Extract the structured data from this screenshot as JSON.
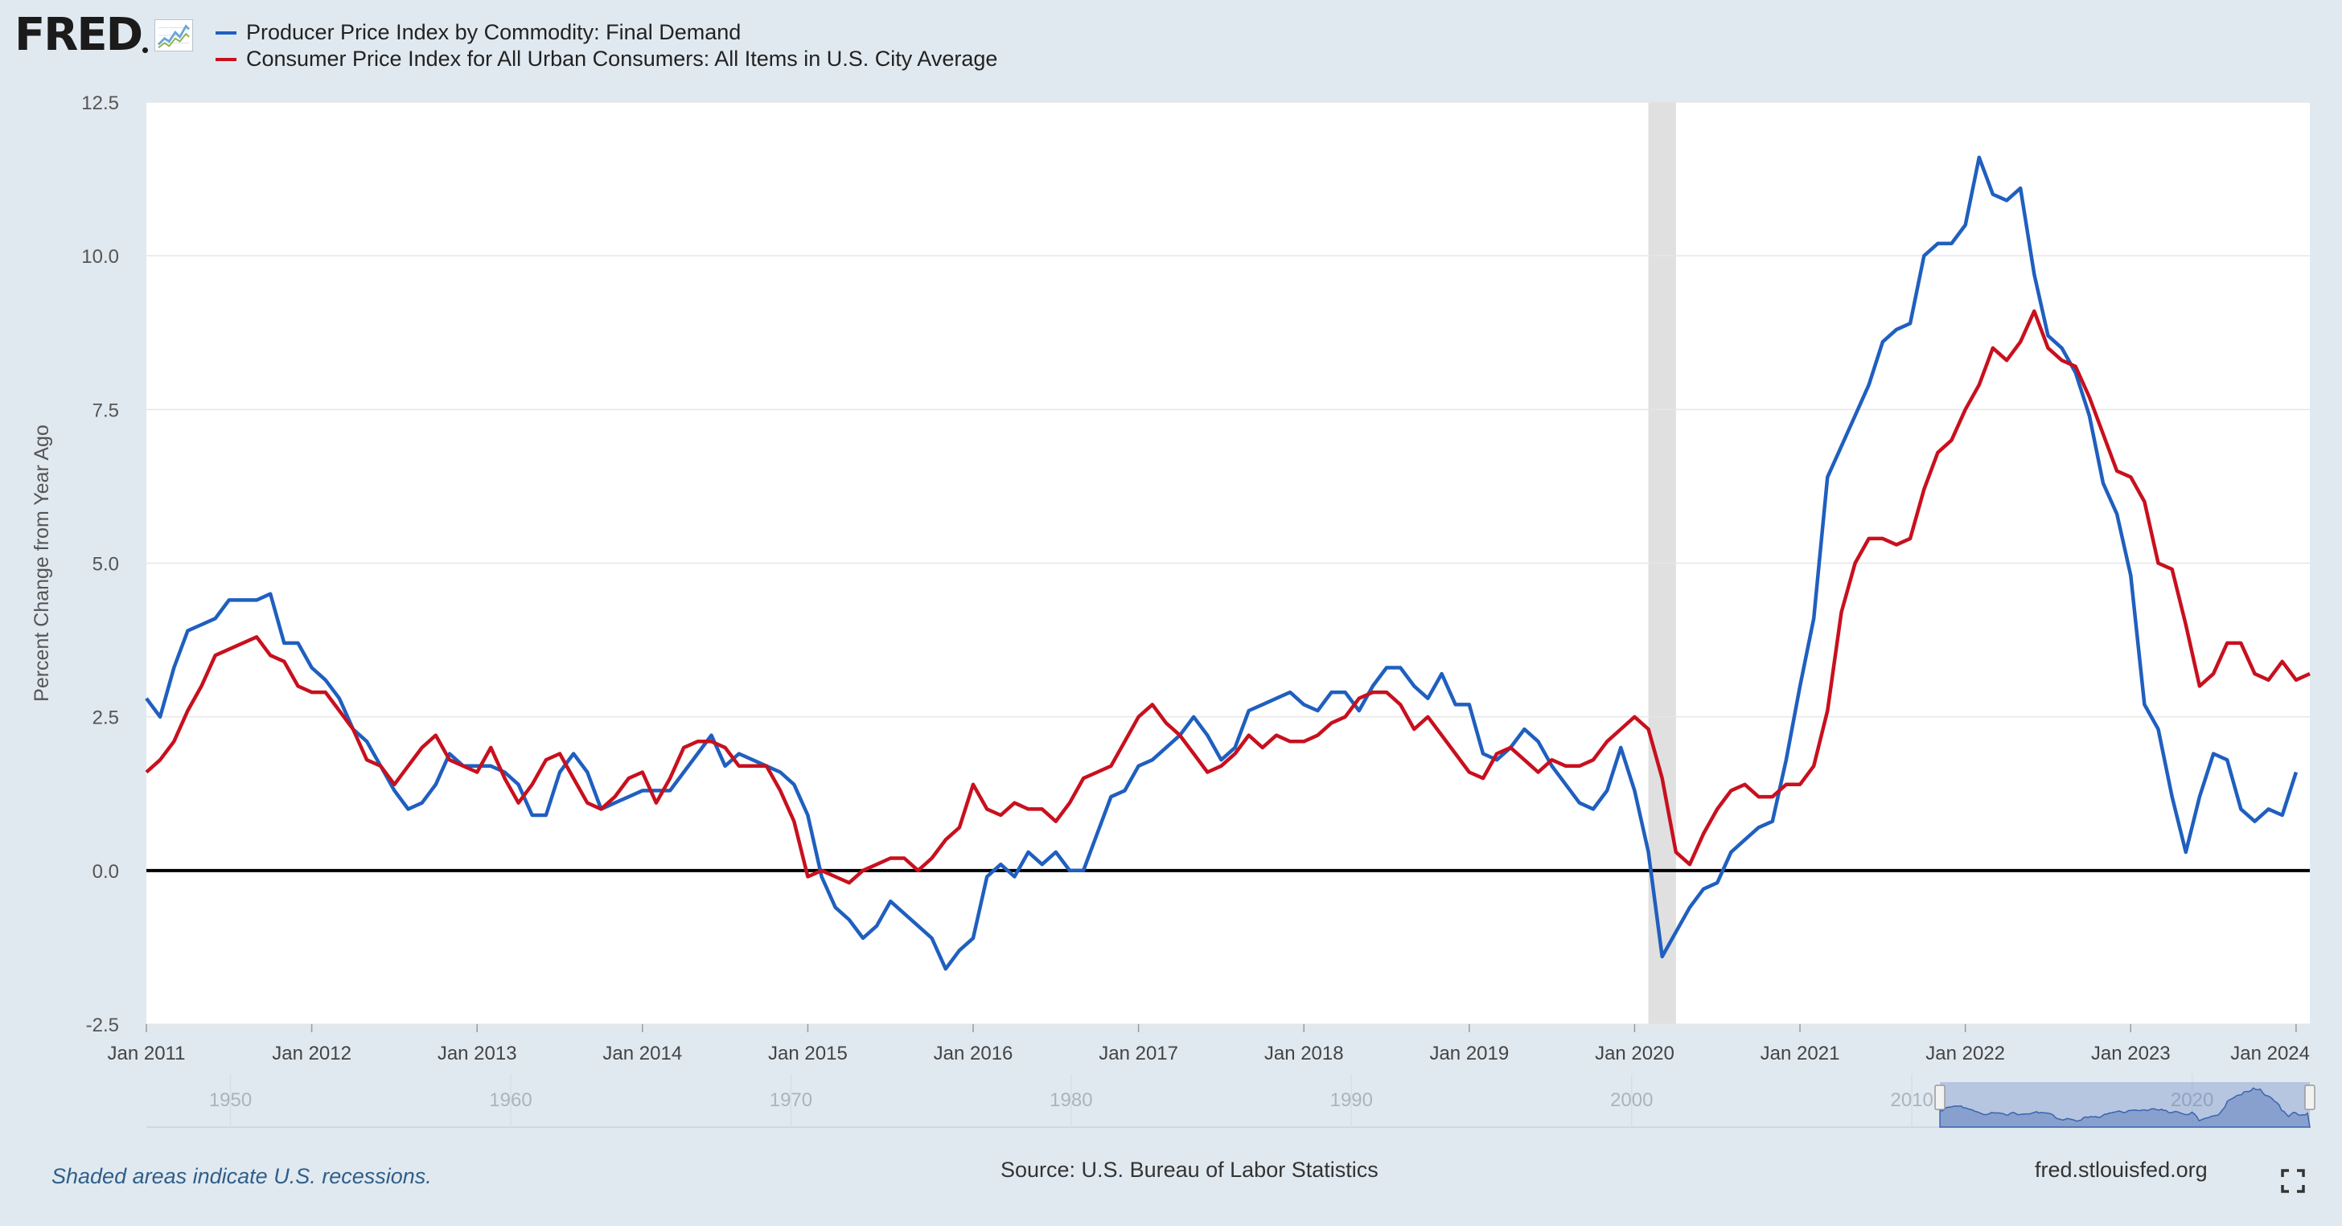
{
  "brand": {
    "logo_text": "FRED",
    "site": "fred.stlouisfed.org"
  },
  "colors": {
    "ppi": "#1f5fbf",
    "cpi": "#c8101e",
    "background": "#e1e9f0",
    "plot": "#ffffff",
    "recession": "#e0e0e0"
  },
  "footer": {
    "recession_note": "Shaded areas indicate U.S. recessions.",
    "source": "Source: U.S. Bureau of Labor Statistics"
  },
  "icons": {
    "fullscreen": "expand-icon",
    "logo": "line-chart-icon"
  },
  "chart_data": {
    "type": "line",
    "ylabel": "Percent Change from Year Ago",
    "ylim": [
      -2.5,
      12.5
    ],
    "yticks": [
      -2.5,
      0.0,
      2.5,
      5.0,
      7.5,
      10.0,
      12.5
    ],
    "ytick_labels": [
      "-2.5",
      "0.0",
      "2.5",
      "5.0",
      "7.5",
      "10.0",
      "12.5"
    ],
    "xlim": [
      "2011-01",
      "2024-02"
    ],
    "xticks": [
      "2011-01",
      "2012-01",
      "2013-01",
      "2014-01",
      "2015-01",
      "2016-01",
      "2017-01",
      "2018-01",
      "2019-01",
      "2020-01",
      "2021-01",
      "2022-01",
      "2023-01",
      "2024-01"
    ],
    "xtick_labels": [
      "Jan 2011",
      "Jan 2012",
      "Jan 2013",
      "Jan 2014",
      "Jan 2015",
      "Jan 2016",
      "Jan 2017",
      "Jan 2018",
      "Jan 2019",
      "Jan 2020",
      "Jan 2021",
      "Jan 2022",
      "Jan 2023",
      "Jan 2024"
    ],
    "zero_line": true,
    "grid": "horizontal",
    "recessions": [
      {
        "start": "2020-02",
        "end": "2020-04"
      }
    ],
    "navigator": {
      "labels": [
        "1950",
        "1960",
        "1970",
        "1980",
        "1990",
        "2000",
        "2010",
        "2020"
      ],
      "range": [
        1947,
        2024.2
      ],
      "selected": [
        2011.0,
        2024.2
      ]
    },
    "series": [
      {
        "name": "Producer Price Index by Commodity: Final Demand",
        "start": "2011-01",
        "values": [
          2.8,
          2.5,
          3.3,
          3.9,
          4.0,
          4.1,
          4.4,
          4.4,
          4.4,
          4.5,
          3.7,
          3.7,
          3.3,
          3.1,
          2.8,
          2.3,
          2.1,
          1.7,
          1.3,
          1.0,
          1.1,
          1.4,
          1.9,
          1.7,
          1.7,
          1.7,
          1.6,
          1.4,
          0.9,
          0.9,
          1.6,
          1.9,
          1.6,
          1.0,
          1.1,
          1.2,
          1.3,
          1.3,
          1.3,
          1.6,
          1.9,
          2.2,
          1.7,
          1.9,
          1.8,
          1.7,
          1.6,
          1.4,
          0.9,
          -0.1,
          -0.6,
          -0.8,
          -1.1,
          -0.9,
          -0.5,
          -0.7,
          -0.9,
          -1.1,
          -1.6,
          -1.3,
          -1.1,
          -0.1,
          0.1,
          -0.1,
          0.3,
          0.1,
          0.3,
          0.0,
          0.0,
          0.6,
          1.2,
          1.3,
          1.7,
          1.8,
          2.0,
          2.2,
          2.5,
          2.2,
          1.8,
          2.0,
          2.6,
          2.7,
          2.8,
          2.9,
          2.7,
          2.6,
          2.9,
          2.9,
          2.6,
          3.0,
          3.3,
          3.3,
          3.0,
          2.8,
          3.2,
          2.7,
          2.7,
          1.9,
          1.8,
          2.0,
          2.3,
          2.1,
          1.7,
          1.4,
          1.1,
          1.0,
          1.3,
          2.0,
          1.3,
          0.3,
          -1.4,
          -1.0,
          -0.6,
          -0.3,
          -0.2,
          0.3,
          0.5,
          0.7,
          0.8,
          1.8,
          3.0,
          4.1,
          6.4,
          6.9,
          7.4,
          7.9,
          8.6,
          8.8,
          8.9,
          10.0,
          10.2,
          10.2,
          10.5,
          11.6,
          11.0,
          10.9,
          11.1,
          9.7,
          8.7,
          8.5,
          8.1,
          7.4,
          6.3,
          5.8,
          4.8,
          2.7,
          2.3,
          1.2,
          0.3,
          1.2,
          1.9,
          1.8,
          1.0,
          0.8,
          1.0,
          0.9,
          1.6
        ]
      },
      {
        "name": "Consumer Price Index for All Urban Consumers: All Items in U.S. City Average",
        "start": "2011-01",
        "values": [
          1.6,
          1.8,
          2.1,
          2.6,
          3.0,
          3.5,
          3.6,
          3.7,
          3.8,
          3.5,
          3.4,
          3.0,
          2.9,
          2.9,
          2.6,
          2.3,
          1.8,
          1.7,
          1.4,
          1.7,
          2.0,
          2.2,
          1.8,
          1.7,
          1.6,
          2.0,
          1.5,
          1.1,
          1.4,
          1.8,
          1.9,
          1.5,
          1.1,
          1.0,
          1.2,
          1.5,
          1.6,
          1.1,
          1.5,
          2.0,
          2.1,
          2.1,
          2.0,
          1.7,
          1.7,
          1.7,
          1.3,
          0.8,
          -0.1,
          0.0,
          -0.1,
          -0.2,
          0.0,
          0.1,
          0.2,
          0.2,
          0.0,
          0.2,
          0.5,
          0.7,
          1.4,
          1.0,
          0.9,
          1.1,
          1.0,
          1.0,
          0.8,
          1.1,
          1.5,
          1.6,
          1.7,
          2.1,
          2.5,
          2.7,
          2.4,
          2.2,
          1.9,
          1.6,
          1.7,
          1.9,
          2.2,
          2.0,
          2.2,
          2.1,
          2.1,
          2.2,
          2.4,
          2.5,
          2.8,
          2.9,
          2.9,
          2.7,
          2.3,
          2.5,
          2.2,
          1.9,
          1.6,
          1.5,
          1.9,
          2.0,
          1.8,
          1.6,
          1.8,
          1.7,
          1.7,
          1.8,
          2.1,
          2.3,
          2.5,
          2.3,
          1.5,
          0.3,
          0.1,
          0.6,
          1.0,
          1.3,
          1.4,
          1.2,
          1.2,
          1.4,
          1.4,
          1.7,
          2.6,
          4.2,
          5.0,
          5.4,
          5.4,
          5.3,
          5.4,
          6.2,
          6.8,
          7.0,
          7.5,
          7.9,
          8.5,
          8.3,
          8.6,
          9.1,
          8.5,
          8.3,
          8.2,
          7.7,
          7.1,
          6.5,
          6.4,
          6.0,
          5.0,
          4.9,
          4.0,
          3.0,
          3.2,
          3.7,
          3.7,
          3.2,
          3.1,
          3.4,
          3.1,
          3.2
        ]
      }
    ]
  }
}
